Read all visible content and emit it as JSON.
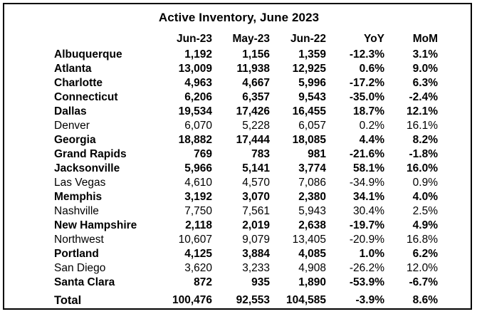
{
  "title": "Active Inventory, June 2023",
  "columns": [
    "",
    "Jun-23",
    "May-23",
    "Jun-22",
    "YoY",
    "MoM"
  ],
  "rows": [
    {
      "name": "Albuquerque",
      "jun23": "1,192",
      "may23": "1,156",
      "jun22": "1,359",
      "yoy": "-12.3%",
      "mom": "3.1%",
      "bold": true
    },
    {
      "name": "Atlanta",
      "jun23": "13,009",
      "may23": "11,938",
      "jun22": "12,925",
      "yoy": "0.6%",
      "mom": "9.0%",
      "bold": true
    },
    {
      "name": "Charlotte",
      "jun23": "4,963",
      "may23": "4,667",
      "jun22": "5,996",
      "yoy": "-17.2%",
      "mom": "6.3%",
      "bold": true
    },
    {
      "name": "Connecticut",
      "jun23": "6,206",
      "may23": "6,357",
      "jun22": "9,543",
      "yoy": "-35.0%",
      "mom": "-2.4%",
      "bold": true
    },
    {
      "name": "Dallas",
      "jun23": "19,534",
      "may23": "17,426",
      "jun22": "16,455",
      "yoy": "18.7%",
      "mom": "12.1%",
      "bold": true
    },
    {
      "name": "Denver",
      "jun23": "6,070",
      "may23": "5,228",
      "jun22": "6,057",
      "yoy": "0.2%",
      "mom": "16.1%",
      "bold": false
    },
    {
      "name": "Georgia",
      "jun23": "18,882",
      "may23": "17,444",
      "jun22": "18,085",
      "yoy": "4.4%",
      "mom": "8.2%",
      "bold": true
    },
    {
      "name": "Grand Rapids",
      "jun23": "769",
      "may23": "783",
      "jun22": "981",
      "yoy": "-21.6%",
      "mom": "-1.8%",
      "bold": true
    },
    {
      "name": "Jacksonville",
      "jun23": "5,966",
      "may23": "5,141",
      "jun22": "3,774",
      "yoy": "58.1%",
      "mom": "16.0%",
      "bold": true
    },
    {
      "name": "Las Vegas",
      "jun23": "4,610",
      "may23": "4,570",
      "jun22": "7,086",
      "yoy": "-34.9%",
      "mom": "0.9%",
      "bold": false
    },
    {
      "name": "Memphis",
      "jun23": "3,192",
      "may23": "3,070",
      "jun22": "2,380",
      "yoy": "34.1%",
      "mom": "4.0%",
      "bold": true
    },
    {
      "name": "Nashville",
      "jun23": "7,750",
      "may23": "7,561",
      "jun22": "5,943",
      "yoy": "30.4%",
      "mom": "2.5%",
      "bold": false
    },
    {
      "name": "New Hampshire",
      "jun23": "2,118",
      "may23": "2,019",
      "jun22": "2,638",
      "yoy": "-19.7%",
      "mom": "4.9%",
      "bold": true
    },
    {
      "name": "Northwest",
      "jun23": "10,607",
      "may23": "9,079",
      "jun22": "13,405",
      "yoy": "-20.9%",
      "mom": "16.8%",
      "bold": false
    },
    {
      "name": "Portland",
      "jun23": "4,125",
      "may23": "3,884",
      "jun22": "4,085",
      "yoy": "1.0%",
      "mom": "6.2%",
      "bold": true
    },
    {
      "name": "San Diego",
      "jun23": "3,620",
      "may23": "3,233",
      "jun22": "4,908",
      "yoy": "-26.2%",
      "mom": "12.0%",
      "bold": false
    },
    {
      "name": "Santa Clara",
      "jun23": "872",
      "may23": "935",
      "jun22": "1,890",
      "yoy": "-53.9%",
      "mom": "-6.7%",
      "bold": true
    }
  ],
  "total": {
    "name": "Total",
    "jun23": "100,476",
    "may23": "92,553",
    "jun22": "104,585",
    "yoy": "-3.9%",
    "mom": "8.6%"
  }
}
